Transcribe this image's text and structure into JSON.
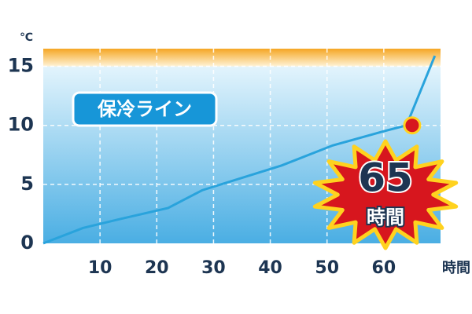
{
  "chart_data": {
    "type": "line",
    "y_unit": "℃",
    "x_unit": "時間",
    "annotation": "保冷ライン",
    "x": [
      0,
      7,
      13,
      22,
      28,
      42,
      51,
      60,
      64,
      69
    ],
    "values": [
      0,
      1.3,
      2.0,
      3.0,
      4.5,
      6.6,
      8.3,
      9.5,
      10,
      15.9
    ],
    "color": "#29a3dc",
    "xlim": [
      0,
      70
    ],
    "xticks": [
      10,
      20,
      30,
      40,
      50,
      60
    ],
    "ylim": [
      0,
      16.5
    ],
    "yticks": [
      0,
      5,
      10,
      15
    ],
    "grid": true,
    "highlight": {
      "x": 65,
      "y": 10,
      "color": "#d7161e"
    }
  }
}
